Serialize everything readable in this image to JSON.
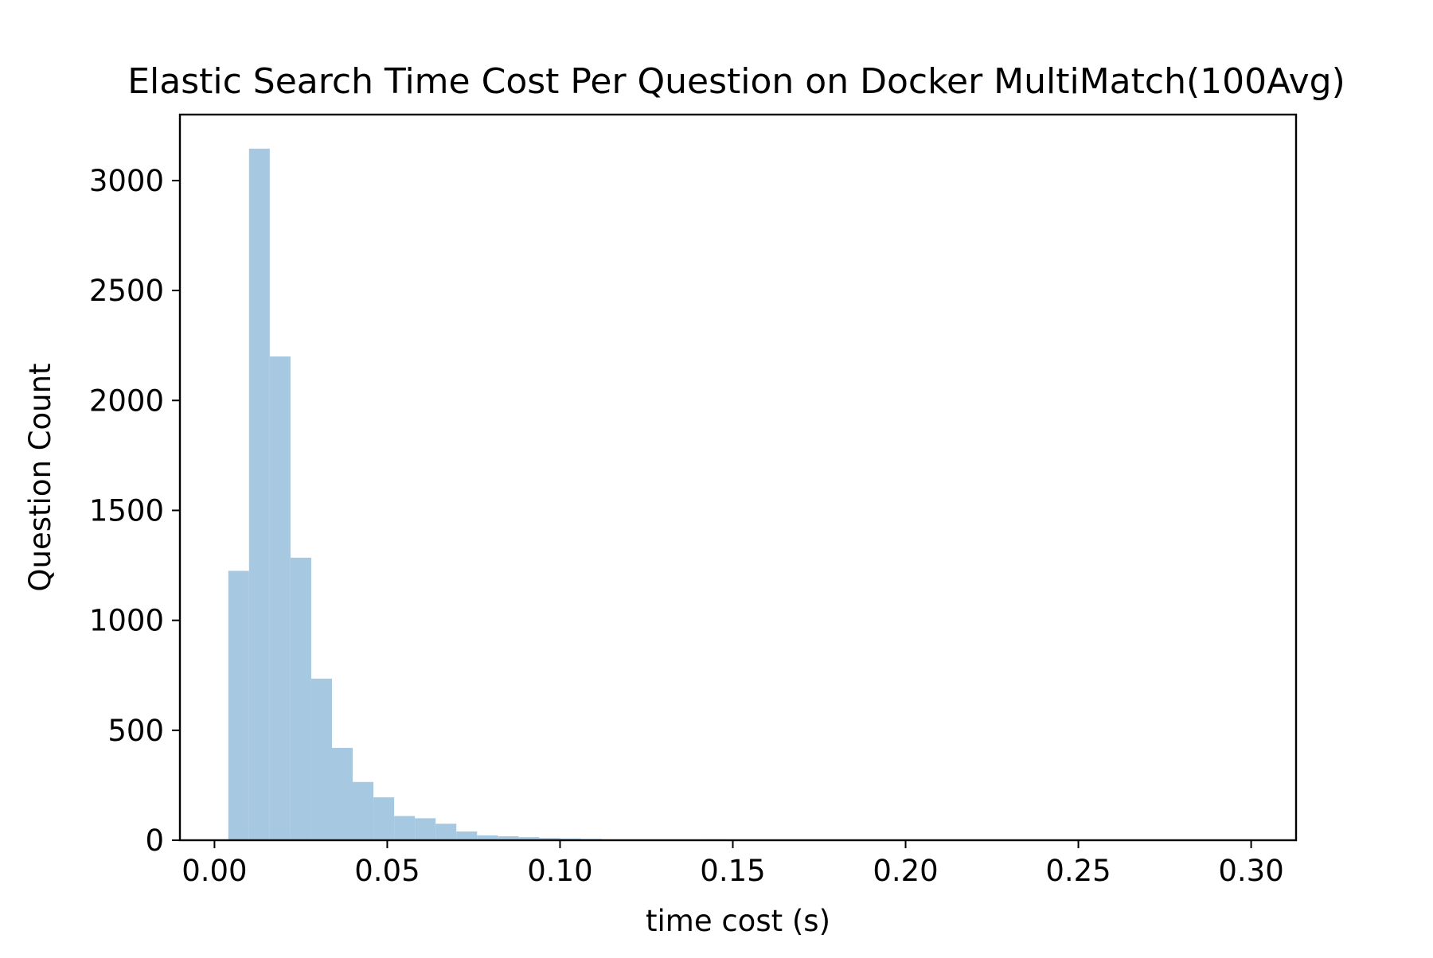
{
  "chart_data": {
    "type": "bar",
    "title": "Elastic Search Time Cost Per Question on Docker MultiMatch(100Avg)",
    "xlabel": "time cost (s)",
    "ylabel": "Question Count",
    "xlim": [
      -0.01,
      0.313
    ],
    "ylim": [
      0,
      3300
    ],
    "xticks": [
      0.0,
      0.05,
      0.1,
      0.15,
      0.2,
      0.25,
      0.3
    ],
    "xtick_labels": [
      "0.00",
      "0.05",
      "0.10",
      "0.15",
      "0.20",
      "0.25",
      "0.30"
    ],
    "yticks": [
      0,
      500,
      1000,
      1500,
      2000,
      2500,
      3000
    ],
    "ytick_labels": [
      "0",
      "500",
      "1000",
      "1500",
      "2000",
      "2500",
      "3000"
    ],
    "bar_color": "#a6c8e0",
    "grid": false,
    "bins": [
      {
        "x0": 0.004,
        "x1": 0.01,
        "count": 1225
      },
      {
        "x0": 0.01,
        "x1": 0.016,
        "count": 3145
      },
      {
        "x0": 0.016,
        "x1": 0.022,
        "count": 2200
      },
      {
        "x0": 0.022,
        "x1": 0.028,
        "count": 1285
      },
      {
        "x0": 0.028,
        "x1": 0.034,
        "count": 735
      },
      {
        "x0": 0.034,
        "x1": 0.04,
        "count": 420
      },
      {
        "x0": 0.04,
        "x1": 0.046,
        "count": 265
      },
      {
        "x0": 0.046,
        "x1": 0.052,
        "count": 195
      },
      {
        "x0": 0.052,
        "x1": 0.058,
        "count": 110
      },
      {
        "x0": 0.058,
        "x1": 0.064,
        "count": 100
      },
      {
        "x0": 0.064,
        "x1": 0.07,
        "count": 75
      },
      {
        "x0": 0.07,
        "x1": 0.076,
        "count": 40
      },
      {
        "x0": 0.076,
        "x1": 0.082,
        "count": 22
      },
      {
        "x0": 0.082,
        "x1": 0.088,
        "count": 18
      },
      {
        "x0": 0.088,
        "x1": 0.094,
        "count": 14
      },
      {
        "x0": 0.094,
        "x1": 0.1,
        "count": 10
      },
      {
        "x0": 0.1,
        "x1": 0.106,
        "count": 8
      },
      {
        "x0": 0.106,
        "x1": 0.112,
        "count": 6
      },
      {
        "x0": 0.112,
        "x1": 0.118,
        "count": 3
      },
      {
        "x0": 0.118,
        "x1": 0.124,
        "count": 2
      },
      {
        "x0": 0.124,
        "x1": 0.13,
        "count": 2
      },
      {
        "x0": 0.13,
        "x1": 0.136,
        "count": 2
      },
      {
        "x0": 0.136,
        "x1": 0.142,
        "count": 2
      },
      {
        "x0": 0.142,
        "x1": 0.148,
        "count": 4
      },
      {
        "x0": 0.148,
        "x1": 0.154,
        "count": 3
      },
      {
        "x0": 0.154,
        "x1": 0.16,
        "count": 1
      },
      {
        "x0": 0.16,
        "x1": 0.166,
        "count": 1
      },
      {
        "x0": 0.166,
        "x1": 0.172,
        "count": 1
      }
    ]
  }
}
